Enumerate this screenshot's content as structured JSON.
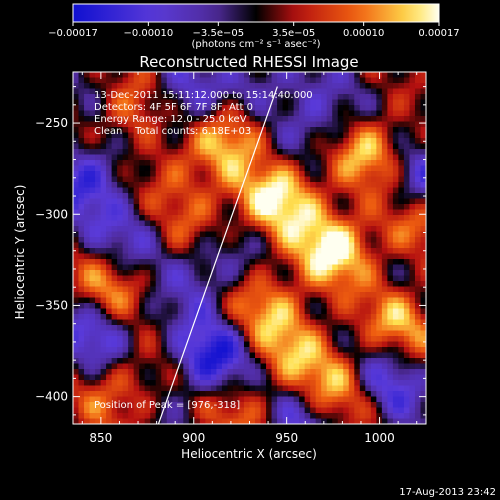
{
  "chart_data": {
    "type": "heatmap",
    "title": "Reconstructed RHESSI Image",
    "xlabel": "Heliocentric X (arcsec)",
    "ylabel": "Heliocentric Y (arcsec)",
    "xlim": [
      835,
      1025
    ],
    "ylim": [
      -415,
      -222
    ],
    "x_ticks": [
      850,
      900,
      950,
      1000
    ],
    "x_tick_labels": [
      "850",
      "900",
      "950",
      "1000"
    ],
    "y_ticks": [
      -250,
      -300,
      -350,
      -400
    ],
    "y_tick_labels": [
      "−250",
      "−300",
      "−350",
      "−400"
    ],
    "colorbar": {
      "range": [
        -0.00017,
        0.00017
      ],
      "ticks": [
        -0.00017,
        -0.0001,
        -3.5e-05,
        3.5e-05,
        0.0001,
        0.00017
      ],
      "tick_labels": [
        "−0.00017",
        "−0.00010",
        "−3.5e−05",
        "3.5e−05",
        "0.00010",
        "0.00017"
      ],
      "units_label": "(photons cm⁻² s⁻¹ asec⁻²)"
    },
    "annotations": [
      "13-Dec-2011 15:11:12.000 to 15:14:40.000",
      "Detectors: 4F 5F 6F 7F 8F, Att 0",
      "Energy Range: 12.0 - 25.0 keV",
      "Clean    Total counts: 6.18E+03"
    ],
    "peak_label": "Position of Peak = [976,-318]",
    "peak": [
      976,
      -318
    ],
    "limb_line": [
      [
        881,
        -415
      ],
      [
        945,
        -230
      ]
    ],
    "grid": false,
    "legend": "none"
  },
  "footer": {
    "timestamp": "17-Aug-2013 23:42"
  },
  "colors": {
    "background": "#000000",
    "foreground": "#ffffff",
    "cmap_neg_high": "#1010d0",
    "cmap_neg_mid": "#5a3ad8",
    "cmap_neg_low": "#4e2a98",
    "cmap_zero": "#000000",
    "cmap_pos_low": "#b41010",
    "cmap_pos_mid": "#f06010",
    "cmap_pos_high": "#ffe050",
    "cmap_peak": "#fffff0"
  }
}
